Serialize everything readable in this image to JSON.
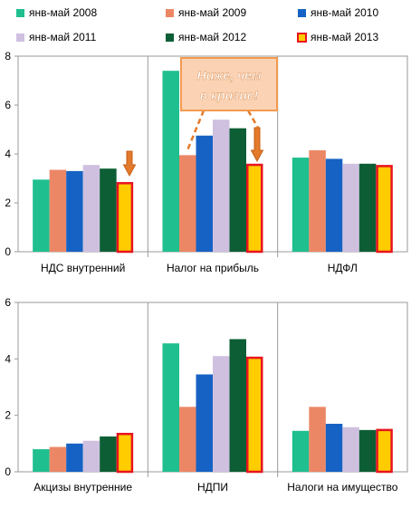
{
  "colors": {
    "s2008": "#1fbf8f",
    "s2009": "#ec8766",
    "s2010": "#1662c4",
    "s2011": "#cfc0e0",
    "s2012": "#0d5e35",
    "s2013": "#ffcc00",
    "s2013_outline": "#e8141e",
    "callout_fill": "#fbd3b4",
    "callout_border": "#f39a4f",
    "callout_text": "#ffffff",
    "arrow": "#e37a2b"
  },
  "annotation": {
    "text_line1": "Ниже, чем",
    "text_line2": "в кризис!"
  },
  "chart_data": [
    {
      "type": "bar",
      "legend_position": "top",
      "categories": [
        "НДС внутренний",
        "Налог  на прибыль",
        "НДФЛ"
      ],
      "series": [
        {
          "name": "янв-май 2008",
          "values": [
            2.95,
            7.4,
            3.85
          ]
        },
        {
          "name": "янв-май 2009",
          "values": [
            3.35,
            3.95,
            4.15
          ]
        },
        {
          "name": "янв-май 2010",
          "values": [
            3.3,
            4.75,
            3.8
          ]
        },
        {
          "name": "янв-май 2011",
          "values": [
            3.55,
            5.4,
            3.6
          ]
        },
        {
          "name": "янв-май 2012",
          "values": [
            3.4,
            5.05,
            3.6
          ]
        },
        {
          "name": "янв-май 2013",
          "values": [
            2.85,
            3.6,
            3.55
          ]
        }
      ],
      "ylim": [
        0,
        8
      ],
      "yticks": [
        "0",
        "2",
        "4",
        "6",
        "8"
      ]
    },
    {
      "type": "bar",
      "categories": [
        "Акцизы внутренние",
        "НДПИ",
        "Налоги на имущество"
      ],
      "series": [
        {
          "name": "янв-май 2008",
          "values": [
            0.8,
            4.55,
            1.45
          ]
        },
        {
          "name": "янв-май 2009",
          "values": [
            0.88,
            2.3,
            2.3
          ]
        },
        {
          "name": "янв-май 2010",
          "values": [
            1.0,
            3.45,
            1.7
          ]
        },
        {
          "name": "янв-май 2011",
          "values": [
            1.1,
            4.1,
            1.58
          ]
        },
        {
          "name": "янв-май 2012",
          "values": [
            1.25,
            4.7,
            1.48
          ]
        },
        {
          "name": "янв-май 2013",
          "values": [
            1.38,
            4.08,
            1.52
          ]
        }
      ],
      "ylim": [
        0,
        6
      ],
      "yticks": [
        "0",
        "2",
        "4",
        "6"
      ]
    }
  ]
}
